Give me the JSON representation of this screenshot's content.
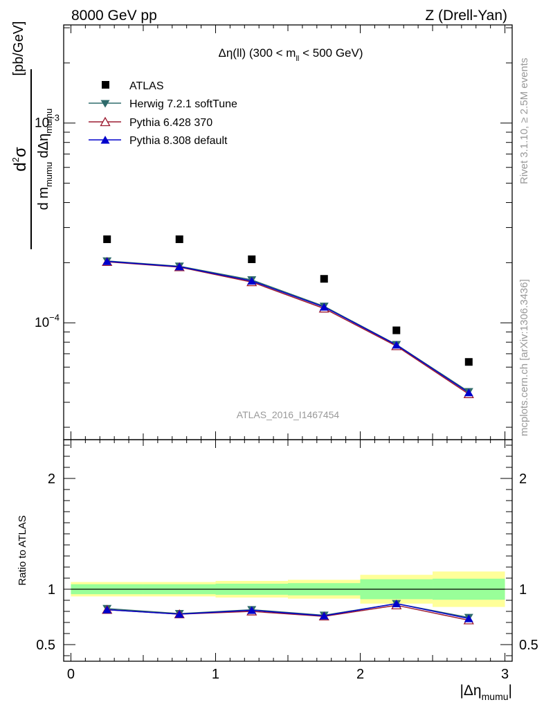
{
  "header": {
    "left": "8000 GeV pp",
    "right": "Z (Drell-Yan)"
  },
  "side_texts": {
    "rivet": "Rivet 3.1.10, ≥ 2.5M events",
    "mcplots": "mcplots.cern.ch [arXiv:1306.3436]"
  },
  "plot_title": {
    "main": "Δη(ll) (300 < m",
    "sub": "ll",
    "tail": " < 500 GeV)"
  },
  "analysis_label": "ATLAS_2016_I1467454",
  "ylabel": {
    "num_d": "d",
    "num_sup": "2",
    "num_sigma": "σ",
    "den_d": "d m",
    "den_sub1": "mumu",
    "den_mid": " dΔη",
    "den_sub2": "mumu",
    "units": "[pb/GeV]"
  },
  "ratio_ylabel": "Ratio to ATLAS",
  "xlabel": {
    "main": "|Δη",
    "sub": "mumu",
    "close": "|"
  },
  "legend": [
    "ATLAS",
    "Herwig 7.2.1 softTune",
    "Pythia 6.428 370",
    "Pythia 8.308 default"
  ],
  "colors": {
    "atlas": "#000000",
    "herwig": "#2f6b6b",
    "pythia6": "#9b1b30",
    "pythia8": "#0000cc",
    "band_yellow": "#ffff99",
    "band_green": "#99ff99"
  },
  "chart_data": {
    "type": "scatter",
    "x_bins": [
      [
        0,
        0.5
      ],
      [
        0.5,
        1
      ],
      [
        1,
        1.5
      ],
      [
        1.5,
        2
      ],
      [
        2,
        2.5
      ],
      [
        2.5,
        3
      ]
    ],
    "x": [
      0.25,
      0.75,
      1.25,
      1.75,
      2.25,
      2.75
    ],
    "xlim": [
      -0.05,
      3.05
    ],
    "ylim": [
      2.6e-05,
      0.0031
    ],
    "yscale": "log",
    "ratio_ylim": [
      0.35,
      2.35
    ],
    "xticks": [
      "0",
      "1",
      "2",
      "3"
    ],
    "yticks": [
      {
        "mantissa": "10",
        "exp": "−4",
        "value": 0.0001
      },
      {
        "mantissa": "10",
        "exp": "−3",
        "value": 0.001
      }
    ],
    "ratio_yticks": [
      "0.5",
      "1",
      "2"
    ],
    "series": [
      {
        "name": "ATLAS",
        "marker": "square",
        "values": [
          0.000262,
          0.000262,
          0.000208,
          0.000166,
          9.17e-05,
          6.37e-05
        ]
      },
      {
        "name": "Herwig 7.2.1 softTune",
        "marker": "triangle-down",
        "values": [
          0.000204,
          0.000192,
          0.000164,
          0.000121,
          7.78e-05,
          4.52e-05
        ]
      },
      {
        "name": "Pythia 6.428 370",
        "marker": "triangle-up-open",
        "values": [
          0.000202,
          0.00019,
          0.00016,
          0.000118,
          7.65e-05,
          4.4e-05
        ]
      },
      {
        "name": "Pythia 8.308 default",
        "marker": "triangle-up",
        "values": [
          0.000203,
          0.000191,
          0.000162,
          0.00012,
          7.75e-05,
          4.47e-05
        ]
      }
    ],
    "ratio_series": [
      {
        "name": "Herwig 7.2.1 softTune",
        "values": [
          0.825,
          0.78,
          0.815,
          0.765,
          0.87,
          0.745
        ]
      },
      {
        "name": "Pythia 6.428 370",
        "values": [
          0.815,
          0.775,
          0.8,
          0.755,
          0.855,
          0.72
        ]
      },
      {
        "name": "Pythia 8.308 default",
        "values": [
          0.815,
          0.775,
          0.81,
          0.76,
          0.87,
          0.735
        ]
      }
    ],
    "uncertainty_bands": {
      "stat_low": [
        0.955,
        0.955,
        0.95,
        0.945,
        0.91,
        0.905
      ],
      "stat_high": [
        1.045,
        1.045,
        1.05,
        1.055,
        1.09,
        1.095
      ],
      "total_low": [
        0.935,
        0.935,
        0.925,
        0.915,
        0.87,
        0.84
      ],
      "total_high": [
        1.065,
        1.065,
        1.075,
        1.085,
        1.13,
        1.16
      ]
    }
  }
}
